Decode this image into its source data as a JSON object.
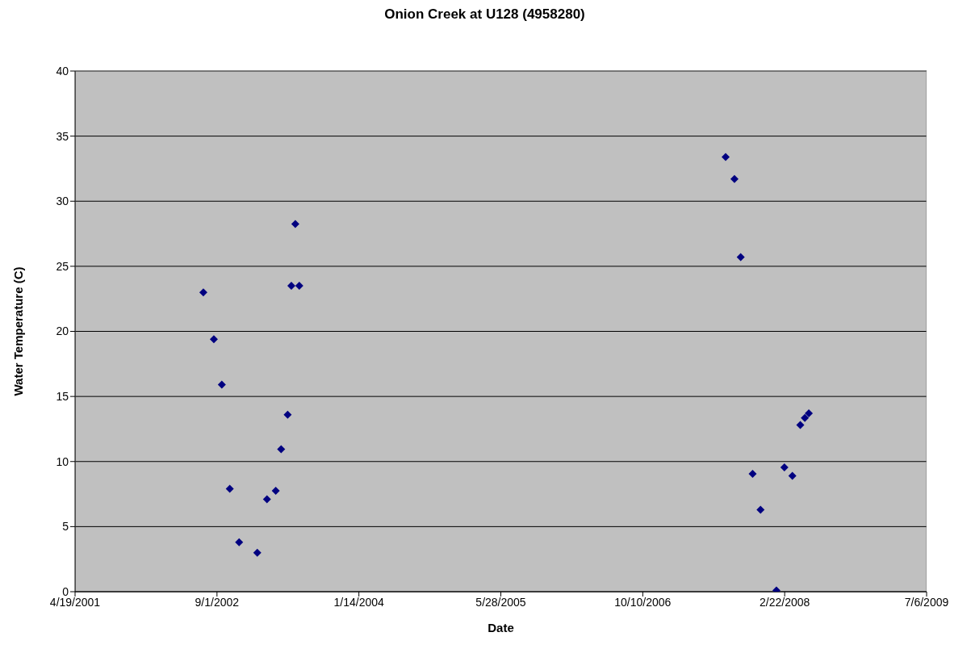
{
  "chart_data": {
    "type": "scatter",
    "title": "Onion Creek at U128 (4958280)",
    "xlabel": "Date",
    "ylabel": "Water Temperature (C)",
    "x": [
      "2002-07-15",
      "2002-08-21",
      "2002-09-18",
      "2002-10-16",
      "2002-11-18",
      "2003-01-21",
      "2003-02-24",
      "2003-03-27",
      "2003-04-15",
      "2003-05-08",
      "2003-05-21",
      "2003-06-04",
      "2003-06-18",
      "2007-07-29",
      "2007-08-29",
      "2007-09-20",
      "2007-11-01",
      "2007-11-29",
      "2008-01-24",
      "2008-02-21",
      "2008-03-20",
      "2008-04-17",
      "2008-05-03",
      "2008-05-17"
    ],
    "series": [
      {
        "color": "#000080",
        "values": [
          23.0,
          19.4,
          15.9,
          7.9,
          3.8,
          3.0,
          7.1,
          7.75,
          10.95,
          13.6,
          23.5,
          28.25,
          23.5,
          33.4,
          31.7,
          25.7,
          9.05,
          6.3,
          0.1,
          9.55,
          8.9,
          12.8,
          13.35,
          13.7
        ]
      }
    ],
    "xlim": [
      "2001-04-19",
      "2009-07-06"
    ],
    "xticks": [
      {
        "value": "2001-04-19",
        "label": "4/19/2001"
      },
      {
        "value": "2002-09-01",
        "label": "9/1/2002"
      },
      {
        "value": "2004-01-14",
        "label": "1/14/2004"
      },
      {
        "value": "2005-05-28",
        "label": "5/28/2005"
      },
      {
        "value": "2006-10-10",
        "label": "10/10/2006"
      },
      {
        "value": "2008-02-22",
        "label": "2/22/2008"
      },
      {
        "value": "2009-07-06",
        "label": "7/6/2009"
      }
    ],
    "ylim": [
      0,
      40
    ],
    "yticks": [
      0,
      5,
      10,
      15,
      20,
      25,
      30,
      35,
      40
    ],
    "grid": "y",
    "marker": "diamond"
  }
}
